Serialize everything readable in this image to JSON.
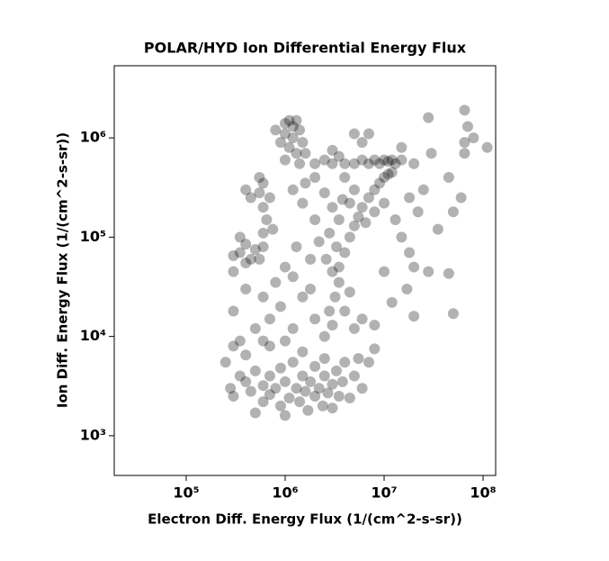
{
  "chart_data": {
    "type": "scatter",
    "title": "POLAR/HYD  Ion Differential Energy Flux",
    "x_label": "Electron Diff. Energy Flux (1/(cm^2-s-sr))",
    "y_label": "Ion Diff. Energy Flux (1/(cm^2-s-sr))",
    "log_x": true,
    "log_y": true,
    "grid": false,
    "color": "#000000",
    "alpha": 0.3,
    "xlim": [
      18750,
      134000000
    ],
    "ylim": [
      398,
      5330000
    ],
    "xticks": [
      {
        "value": 100000,
        "label": "10⁵"
      },
      {
        "value": 1000000,
        "label": "10⁶"
      },
      {
        "value": 10000000,
        "label": "10⁷"
      },
      {
        "value": 100000000,
        "label": "10⁸"
      }
    ],
    "yticks": [
      {
        "value": 1000,
        "label": "10³"
      },
      {
        "value": 10000,
        "label": "10⁴"
      },
      {
        "value": 100000,
        "label": "10⁵"
      },
      {
        "value": 1000000,
        "label": "10⁶"
      }
    ],
    "x": [
      250000,
      280000,
      300000,
      350000,
      400000,
      450000,
      500000,
      500000,
      600000,
      600000,
      700000,
      700000,
      800000,
      900000,
      900000,
      1000000,
      1000000,
      1100000,
      1200000,
      1300000,
      1400000,
      1500000,
      1600000,
      1700000,
      1800000,
      2000000,
      2000000,
      2200000,
      2400000,
      2500000,
      2700000,
      3000000,
      3000000,
      3300000,
      3500000,
      3800000,
      4000000,
      4500000,
      5000000,
      5500000,
      6000000,
      7000000,
      8000000,
      400000,
      300000,
      600000,
      1500000,
      2500000,
      2500000,
      3000000,
      2800000,
      3200000,
      3500000,
      3000000,
      2600000,
      3300000,
      2800000,
      3500000,
      3000000,
      2500000,
      3800000,
      2000000,
      2200000,
      1800000,
      1500000,
      1200000,
      1600000,
      2000000,
      4000000,
      4500000,
      5000000,
      2000000,
      1500000,
      1200000,
      900000,
      800000,
      1000000,
      1300000,
      700000,
      600000,
      500000,
      400000,
      300000,
      350000,
      700000,
      1000000,
      1200000,
      1800000,
      300000,
      350000,
      400000,
      450000,
      500000,
      550000,
      600000,
      400000,
      600000,
      650000,
      600000,
      550000,
      600000,
      550000,
      700000,
      750000,
      450000,
      400000,
      350000,
      300000,
      1000000,
      1100000,
      1200000,
      1300000,
      1400000,
      1000000,
      1200000,
      1500000,
      1100000,
      900000,
      1300000,
      1600000,
      1000000,
      1400000,
      800000,
      2000000,
      2500000,
      3000000,
      3500000,
      4000000,
      5000000,
      6000000,
      7000000,
      8000000,
      9000000,
      10000000,
      11000000,
      12000000,
      13000000,
      15000000,
      6000000,
      5000000,
      3000000,
      3500000,
      4000000,
      4500000,
      5000000,
      5500000,
      6000000,
      7000000,
      8000000,
      9000000,
      10000000,
      11000000,
      12000000,
      6500000,
      8000000,
      10000000,
      13000000,
      5000000,
      4000000,
      4500000,
      15000000,
      18000000,
      20000000,
      17000000,
      12000000,
      20000000,
      10000000,
      28000000,
      45000000,
      50000000,
      35000000,
      50000000,
      60000000,
      45000000,
      28000000,
      65000000,
      70000000,
      65000000,
      80000000,
      110000000,
      65000000,
      30000000,
      25000000,
      18000000,
      22000000,
      15000000,
      20000000,
      7000000,
      8000000,
      6000000
    ],
    "values": [
      5500,
      3000,
      2500,
      4000,
      3500,
      2800,
      1700,
      4500,
      2200,
      3200,
      4000,
      2600,
      3000,
      2000,
      4800,
      1600,
      3500,
      2400,
      5500,
      3000,
      2200,
      4000,
      2800,
      1800,
      3500,
      2500,
      5000,
      3000,
      2000,
      4000,
      2700,
      3300,
      1900,
      4500,
      2500,
      3500,
      5500,
      2400,
      4000,
      6000,
      3000,
      5500,
      7500,
      6500,
      8000,
      9000,
      7000,
      6000,
      10000,
      13000,
      18000,
      25000,
      35000,
      45000,
      60000,
      80000,
      110000,
      150000,
      200000,
      280000,
      240000,
      150000,
      90000,
      60000,
      220000,
      300000,
      350000,
      400000,
      18000,
      28000,
      12000,
      15000,
      25000,
      12000,
      20000,
      35000,
      50000,
      80000,
      15000,
      25000,
      12000,
      30000,
      18000,
      9000,
      8000,
      9000,
      40000,
      30000,
      65000,
      70000,
      55000,
      60000,
      75000,
      60000,
      80000,
      85000,
      110000,
      150000,
      200000,
      280000,
      350000,
      400000,
      250000,
      120000,
      250000,
      300000,
      100000,
      45000,
      1400000,
      1500000,
      1300000,
      1500000,
      1200000,
      1100000,
      1000000,
      900000,
      800000,
      900000,
      700000,
      700000,
      600000,
      550000,
      1200000,
      550000,
      600000,
      550000,
      650000,
      550000,
      550000,
      600000,
      550000,
      600000,
      550000,
      600000,
      580000,
      600000,
      550000,
      600000,
      900000,
      1100000,
      750000,
      50000,
      70000,
      100000,
      130000,
      160000,
      200000,
      250000,
      300000,
      350000,
      400000,
      430000,
      450000,
      140000,
      180000,
      220000,
      150000,
      300000,
      400000,
      220000,
      100000,
      70000,
      50000,
      30000,
      22000,
      16000,
      45000,
      45000,
      43000,
      17000,
      120000,
      180000,
      250000,
      400000,
      1600000,
      1900000,
      1300000,
      900000,
      1000000,
      800000,
      700000,
      700000,
      300000,
      250000,
      180000,
      800000,
      550000,
      1100000,
      13000,
      15000
    ]
  }
}
